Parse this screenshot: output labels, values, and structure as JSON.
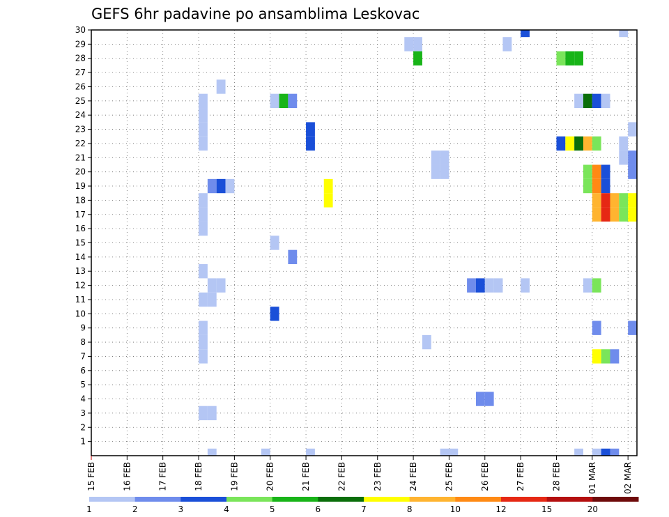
{
  "chart_data": {
    "type": "heatmap",
    "title": "GEFS 6hr padavine po ansamblima Leskovac",
    "xlabel": "",
    "ylabel": "",
    "x_range": [
      "2025-02-15 00:00",
      "2025-03-02 06:00"
    ],
    "x_step_hours": 6,
    "x_tick_labels": [
      "15 FEB",
      "16 FEB",
      "17 FEB",
      "18 FEB",
      "19 FEB",
      "20 FEB",
      "21 FEB",
      "22 FEB",
      "23 FEB",
      "24 FEB",
      "25 FEB",
      "26 FEB",
      "27 FEB",
      "28 FEB",
      "01 MAR",
      "02 MAR"
    ],
    "y_tick_labels": [
      1,
      2,
      3,
      4,
      5,
      6,
      7,
      8,
      9,
      10,
      11,
      12,
      13,
      14,
      15,
      16,
      17,
      18,
      19,
      20,
      21,
      22,
      23,
      24,
      25,
      26,
      27,
      28,
      29,
      30
    ],
    "ylim": [
      0,
      30
    ],
    "grid": true,
    "colorbar": {
      "labels": [
        "1",
        "2",
        "3",
        "4",
        "5",
        "6",
        "7",
        "8",
        "10",
        "12",
        "15",
        "20"
      ],
      "colors": [
        "#b4c6f4",
        "#6f8cec",
        "#1a4fd8",
        "#7ae55a",
        "#18b418",
        "#0a6e0a",
        "#ffff00",
        "#ffb430",
        "#ff8a14",
        "#e62814",
        "#b40f0f",
        "#6e0a0a"
      ]
    },
    "cells": [
      {
        "member": 30,
        "time": "2025-02-27 00:00",
        "color": "#1a4fd8"
      },
      {
        "member": 30,
        "time": "2025-03-01 18:00",
        "color": "#b4c6f4"
      },
      {
        "member": 29,
        "time": "2025-02-23 18:00",
        "color": "#b4c6f4"
      },
      {
        "member": 29,
        "time": "2025-02-24 00:00",
        "color": "#b4c6f4"
      },
      {
        "member": 29,
        "time": "2025-02-26 12:00",
        "color": "#b4c6f4"
      },
      {
        "member": 28,
        "time": "2025-02-24 00:00",
        "color": "#18b418"
      },
      {
        "member": 28,
        "time": "2025-02-28 00:00",
        "color": "#7ae55a"
      },
      {
        "member": 28,
        "time": "2025-02-28 06:00",
        "color": "#18b418"
      },
      {
        "member": 28,
        "time": "2025-02-28 12:00",
        "color": "#18b418"
      },
      {
        "member": 26,
        "time": "2025-02-18 12:00",
        "color": "#b4c6f4"
      },
      {
        "member": 25,
        "time": "2025-02-18 00:00",
        "color": "#b4c6f4"
      },
      {
        "member": 25,
        "time": "2025-02-20 00:00",
        "color": "#b4c6f4"
      },
      {
        "member": 25,
        "time": "2025-02-20 06:00",
        "color": "#18b418"
      },
      {
        "member": 25,
        "time": "2025-02-20 12:00",
        "color": "#6f8cec"
      },
      {
        "member": 25,
        "time": "2025-02-28 12:00",
        "color": "#b4c6f4"
      },
      {
        "member": 25,
        "time": "2025-02-28 18:00",
        "color": "#0a6e0a"
      },
      {
        "member": 25,
        "time": "2025-03-01 00:00",
        "color": "#1a4fd8"
      },
      {
        "member": 25,
        "time": "2025-03-01 06:00",
        "color": "#b4c6f4"
      },
      {
        "member": 24,
        "time": "2025-02-18 00:00",
        "color": "#b4c6f4"
      },
      {
        "member": 23,
        "time": "2025-02-18 00:00",
        "color": "#b4c6f4"
      },
      {
        "member": 23,
        "time": "2025-02-21 00:00",
        "color": "#1a4fd8"
      },
      {
        "member": 23,
        "time": "2025-03-02 00:00",
        "color": "#b4c6f4"
      },
      {
        "member": 22,
        "time": "2025-02-18 00:00",
        "color": "#b4c6f4"
      },
      {
        "member": 22,
        "time": "2025-02-21 00:00",
        "color": "#1a4fd8"
      },
      {
        "member": 22,
        "time": "2025-02-28 00:00",
        "color": "#1a4fd8"
      },
      {
        "member": 22,
        "time": "2025-02-28 06:00",
        "color": "#ffff00"
      },
      {
        "member": 22,
        "time": "2025-02-28 12:00",
        "color": "#0a6e0a"
      },
      {
        "member": 22,
        "time": "2025-02-28 18:00",
        "color": "#ffb430"
      },
      {
        "member": 22,
        "time": "2025-03-01 00:00",
        "color": "#7ae55a"
      },
      {
        "member": 22,
        "time": "2025-03-01 18:00",
        "color": "#b4c6f4"
      },
      {
        "member": 21,
        "time": "2025-02-24 12:00",
        "color": "#b4c6f4"
      },
      {
        "member": 21,
        "time": "2025-02-24 18:00",
        "color": "#b4c6f4"
      },
      {
        "member": 21,
        "time": "2025-03-01 18:00",
        "color": "#b4c6f4"
      },
      {
        "member": 21,
        "time": "2025-03-02 00:00",
        "color": "#6f8cec"
      },
      {
        "member": 20,
        "time": "2025-02-24 12:00",
        "color": "#b4c6f4"
      },
      {
        "member": 20,
        "time": "2025-02-24 18:00",
        "color": "#b4c6f4"
      },
      {
        "member": 20,
        "time": "2025-02-28 18:00",
        "color": "#7ae55a"
      },
      {
        "member": 20,
        "time": "2025-03-01 00:00",
        "color": "#ff8a14"
      },
      {
        "member": 20,
        "time": "2025-03-01 06:00",
        "color": "#1a4fd8"
      },
      {
        "member": 20,
        "time": "2025-03-02 00:00",
        "color": "#6f8cec"
      },
      {
        "member": 19,
        "time": "2025-02-18 06:00",
        "color": "#6f8cec"
      },
      {
        "member": 19,
        "time": "2025-02-18 12:00",
        "color": "#1a4fd8"
      },
      {
        "member": 19,
        "time": "2025-02-18 18:00",
        "color": "#b4c6f4"
      },
      {
        "member": 19,
        "time": "2025-02-21 12:00",
        "color": "#ffff00"
      },
      {
        "member": 19,
        "time": "2025-02-28 18:00",
        "color": "#7ae55a"
      },
      {
        "member": 19,
        "time": "2025-03-01 00:00",
        "color": "#ff8a14"
      },
      {
        "member": 19,
        "time": "2025-03-01 06:00",
        "color": "#1a4fd8"
      },
      {
        "member": 18,
        "time": "2025-02-18 00:00",
        "color": "#b4c6f4"
      },
      {
        "member": 18,
        "time": "2025-02-21 12:00",
        "color": "#ffff00"
      },
      {
        "member": 18,
        "time": "2025-03-01 00:00",
        "color": "#ffb430"
      },
      {
        "member": 18,
        "time": "2025-03-01 06:00",
        "color": "#e62814"
      },
      {
        "member": 18,
        "time": "2025-03-01 12:00",
        "color": "#ffb430"
      },
      {
        "member": 18,
        "time": "2025-03-01 18:00",
        "color": "#7ae55a"
      },
      {
        "member": 18,
        "time": "2025-03-02 00:00",
        "color": "#ffff00"
      },
      {
        "member": 17,
        "time": "2025-02-18 00:00",
        "color": "#b4c6f4"
      },
      {
        "member": 17,
        "time": "2025-03-01 00:00",
        "color": "#ffb430"
      },
      {
        "member": 17,
        "time": "2025-03-01 06:00",
        "color": "#e62814"
      },
      {
        "member": 17,
        "time": "2025-03-01 12:00",
        "color": "#ffb430"
      },
      {
        "member": 17,
        "time": "2025-03-01 18:00",
        "color": "#7ae55a"
      },
      {
        "member": 17,
        "time": "2025-03-02 00:00",
        "color": "#ffff00"
      },
      {
        "member": 16,
        "time": "2025-02-18 00:00",
        "color": "#b4c6f4"
      },
      {
        "member": 15,
        "time": "2025-02-20 00:00",
        "color": "#b4c6f4"
      },
      {
        "member": 14,
        "time": "2025-02-20 12:00",
        "color": "#6f8cec"
      },
      {
        "member": 13,
        "time": "2025-02-18 00:00",
        "color": "#b4c6f4"
      },
      {
        "member": 12,
        "time": "2025-02-18 06:00",
        "color": "#b4c6f4"
      },
      {
        "member": 12,
        "time": "2025-02-18 12:00",
        "color": "#b4c6f4"
      },
      {
        "member": 12,
        "time": "2025-02-25 12:00",
        "color": "#6f8cec"
      },
      {
        "member": 12,
        "time": "2025-02-25 18:00",
        "color": "#1a4fd8"
      },
      {
        "member": 12,
        "time": "2025-02-26 00:00",
        "color": "#b4c6f4"
      },
      {
        "member": 12,
        "time": "2025-02-26 06:00",
        "color": "#b4c6f4"
      },
      {
        "member": 12,
        "time": "2025-02-27 00:00",
        "color": "#b4c6f4"
      },
      {
        "member": 12,
        "time": "2025-02-28 18:00",
        "color": "#b4c6f4"
      },
      {
        "member": 12,
        "time": "2025-03-01 00:00",
        "color": "#7ae55a"
      },
      {
        "member": 11,
        "time": "2025-02-18 00:00",
        "color": "#b4c6f4"
      },
      {
        "member": 11,
        "time": "2025-02-18 06:00",
        "color": "#b4c6f4"
      },
      {
        "member": 10,
        "time": "2025-02-20 00:00",
        "color": "#1a4fd8"
      },
      {
        "member": 9,
        "time": "2025-02-18 00:00",
        "color": "#b4c6f4"
      },
      {
        "member": 9,
        "time": "2025-03-01 00:00",
        "color": "#6f8cec"
      },
      {
        "member": 9,
        "time": "2025-03-02 00:00",
        "color": "#6f8cec"
      },
      {
        "member": 8,
        "time": "2025-02-18 00:00",
        "color": "#b4c6f4"
      },
      {
        "member": 8,
        "time": "2025-02-24 06:00",
        "color": "#b4c6f4"
      },
      {
        "member": 7,
        "time": "2025-02-18 00:00",
        "color": "#b4c6f4"
      },
      {
        "member": 7,
        "time": "2025-03-01 00:00",
        "color": "#ffff00"
      },
      {
        "member": 7,
        "time": "2025-03-01 06:00",
        "color": "#7ae55a"
      },
      {
        "member": 7,
        "time": "2025-03-01 12:00",
        "color": "#6f8cec"
      },
      {
        "member": 4,
        "time": "2025-02-25 18:00",
        "color": "#6f8cec"
      },
      {
        "member": 4,
        "time": "2025-02-26 00:00",
        "color": "#6f8cec"
      },
      {
        "member": 3,
        "time": "2025-02-18 00:00",
        "color": "#b4c6f4"
      },
      {
        "member": 3,
        "time": "2025-02-18 06:00",
        "color": "#b4c6f4"
      },
      {
        "member": 0,
        "time": "2025-02-18 06:00",
        "color": "#b4c6f4"
      },
      {
        "member": 0,
        "time": "2025-02-19 18:00",
        "color": "#b4c6f4"
      },
      {
        "member": 0,
        "time": "2025-02-21 00:00",
        "color": "#b4c6f4"
      },
      {
        "member": 0,
        "time": "2025-02-24 18:00",
        "color": "#b4c6f4"
      },
      {
        "member": 0,
        "time": "2025-02-25 00:00",
        "color": "#b4c6f4"
      },
      {
        "member": 0,
        "time": "2025-02-28 12:00",
        "color": "#b4c6f4"
      },
      {
        "member": 0,
        "time": "2025-03-01 00:00",
        "color": "#b4c6f4"
      },
      {
        "member": 0,
        "time": "2025-03-01 06:00",
        "color": "#1a4fd8"
      },
      {
        "member": 0,
        "time": "2025-03-01 12:00",
        "color": "#6f8cec"
      }
    ]
  }
}
